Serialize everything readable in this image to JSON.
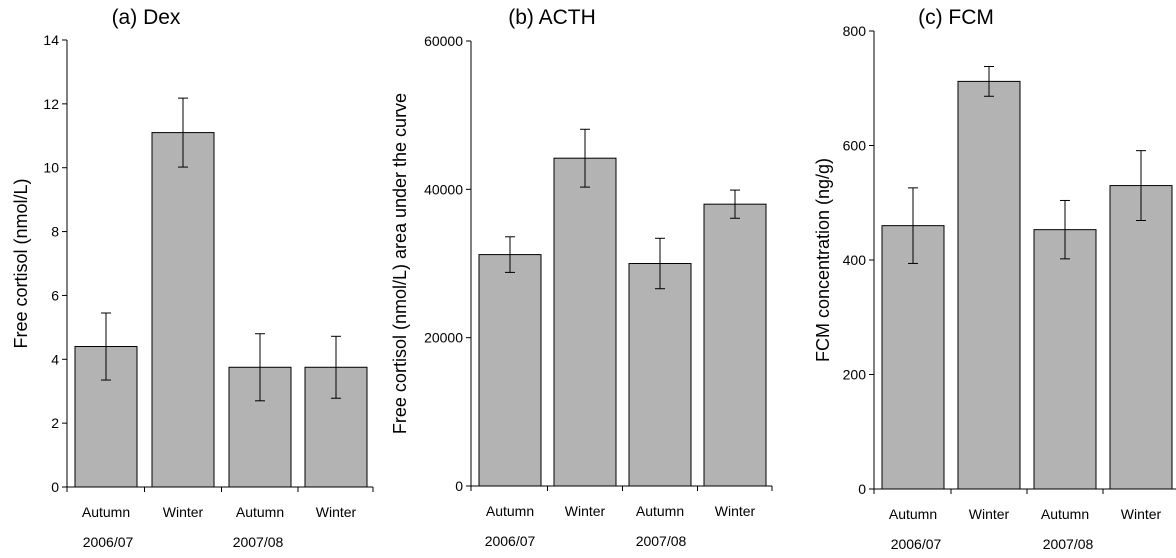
{
  "chart_data": [
    {
      "type": "bar",
      "title": "(a) Dex",
      "ylabel": "Free cortisol (nmol/L)",
      "ylim": [
        0,
        14
      ],
      "yticks": [
        0,
        2,
        4,
        6,
        8,
        10,
        12,
        14
      ],
      "categories": [
        "Autumn",
        "Winter",
        "Autumn",
        "Winter"
      ],
      "groups": [
        "2006/07",
        "2007/08"
      ],
      "values": [
        4.4,
        11.1,
        3.75,
        3.75
      ],
      "errors": [
        1.05,
        1.08,
        1.05,
        0.97
      ],
      "bar_color": "#b3b3b3"
    },
    {
      "type": "bar",
      "title": "(b) ACTH",
      "ylabel": "Free cortisol (nmol/L) area under the curve",
      "ylim": [
        0,
        60000
      ],
      "yticks": [
        0,
        20000,
        40000,
        60000
      ],
      "categories": [
        "Autumn",
        "Winter",
        "Autumn",
        "Winter"
      ],
      "groups": [
        "2006/07",
        "2007/08"
      ],
      "values": [
        31200,
        44200,
        30000,
        38000
      ],
      "errors": [
        2400,
        3900,
        3400,
        1900
      ],
      "bar_color": "#b3b3b3"
    },
    {
      "type": "bar",
      "title": "(c) FCM",
      "ylabel": "FCM concentration (ng/g)",
      "ylim": [
        0,
        800
      ],
      "yticks": [
        0,
        200,
        400,
        600,
        800
      ],
      "categories": [
        "Autumn",
        "Winter",
        "Autumn",
        "Winter"
      ],
      "groups": [
        "2006/07",
        "2007/08"
      ],
      "values": [
        460,
        712,
        453,
        530
      ],
      "errors": [
        66,
        26,
        51,
        61
      ],
      "bar_color": "#b3b3b3"
    }
  ]
}
